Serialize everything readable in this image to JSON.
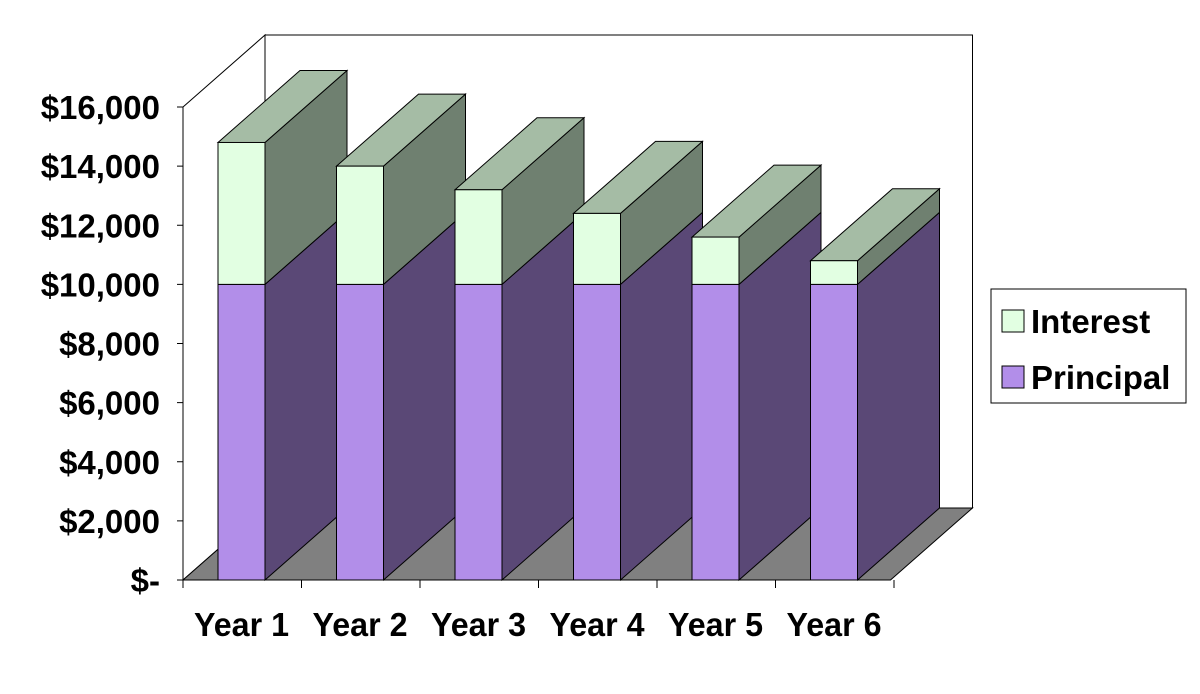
{
  "chart_data": {
    "type": "bar",
    "stacked": true,
    "three_d": true,
    "categories": [
      "Year 1",
      "Year 2",
      "Year 3",
      "Year 4",
      "Year 5",
      "Year 6"
    ],
    "series": [
      {
        "name": "Principal",
        "values": [
          10000,
          10000,
          10000,
          10000,
          10000,
          10000
        ]
      },
      {
        "name": "Interest",
        "values": [
          4800,
          4000,
          3200,
          2400,
          1600,
          800
        ]
      }
    ],
    "y_ticks": [
      "$-",
      "$2,000",
      "$4,000",
      "$6,000",
      "$8,000",
      "$10,000",
      "$12,000",
      "$14,000",
      "$16,000"
    ],
    "ylim": [
      0,
      16000
    ],
    "title": "",
    "xlabel": "",
    "ylabel": "",
    "grid": false,
    "legend_position": "right",
    "legend_order": [
      "Interest",
      "Principal"
    ],
    "colors": {
      "Principal_front": "#b28ee9",
      "Principal_side": "#5a4876",
      "Interest_front": "#e2ffe2",
      "Interest_side": "#6f8070",
      "Interest_top": "#a5bca5",
      "floor": "#808080"
    }
  }
}
